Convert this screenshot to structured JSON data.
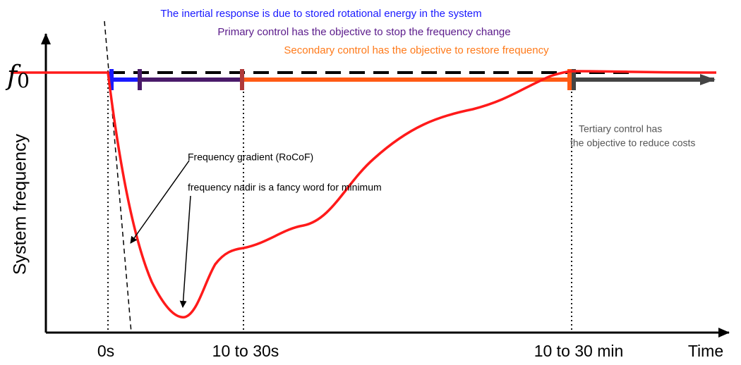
{
  "annotations": {
    "inertial": "The inertial response is due to stored rotational energy in the system",
    "primary": "Primary control has the objective to stop the frequency change",
    "secondary": "Secondary control has the objective to restore frequency",
    "tertiary": [
      "Tertiary control has",
      "the objective to reduce costs"
    ],
    "gradient": "Frequency gradient (RoCoF)",
    "nadir": "frequency nadir is a fancy word for minimum"
  },
  "f0_label": {
    "symbol": "f",
    "subscript": "0"
  },
  "y_axis_label": "System frequency",
  "x_axis_label": "Time",
  "time_labels": [
    "0s",
    "10 to 30s",
    "10 to 30 min"
  ]
}
